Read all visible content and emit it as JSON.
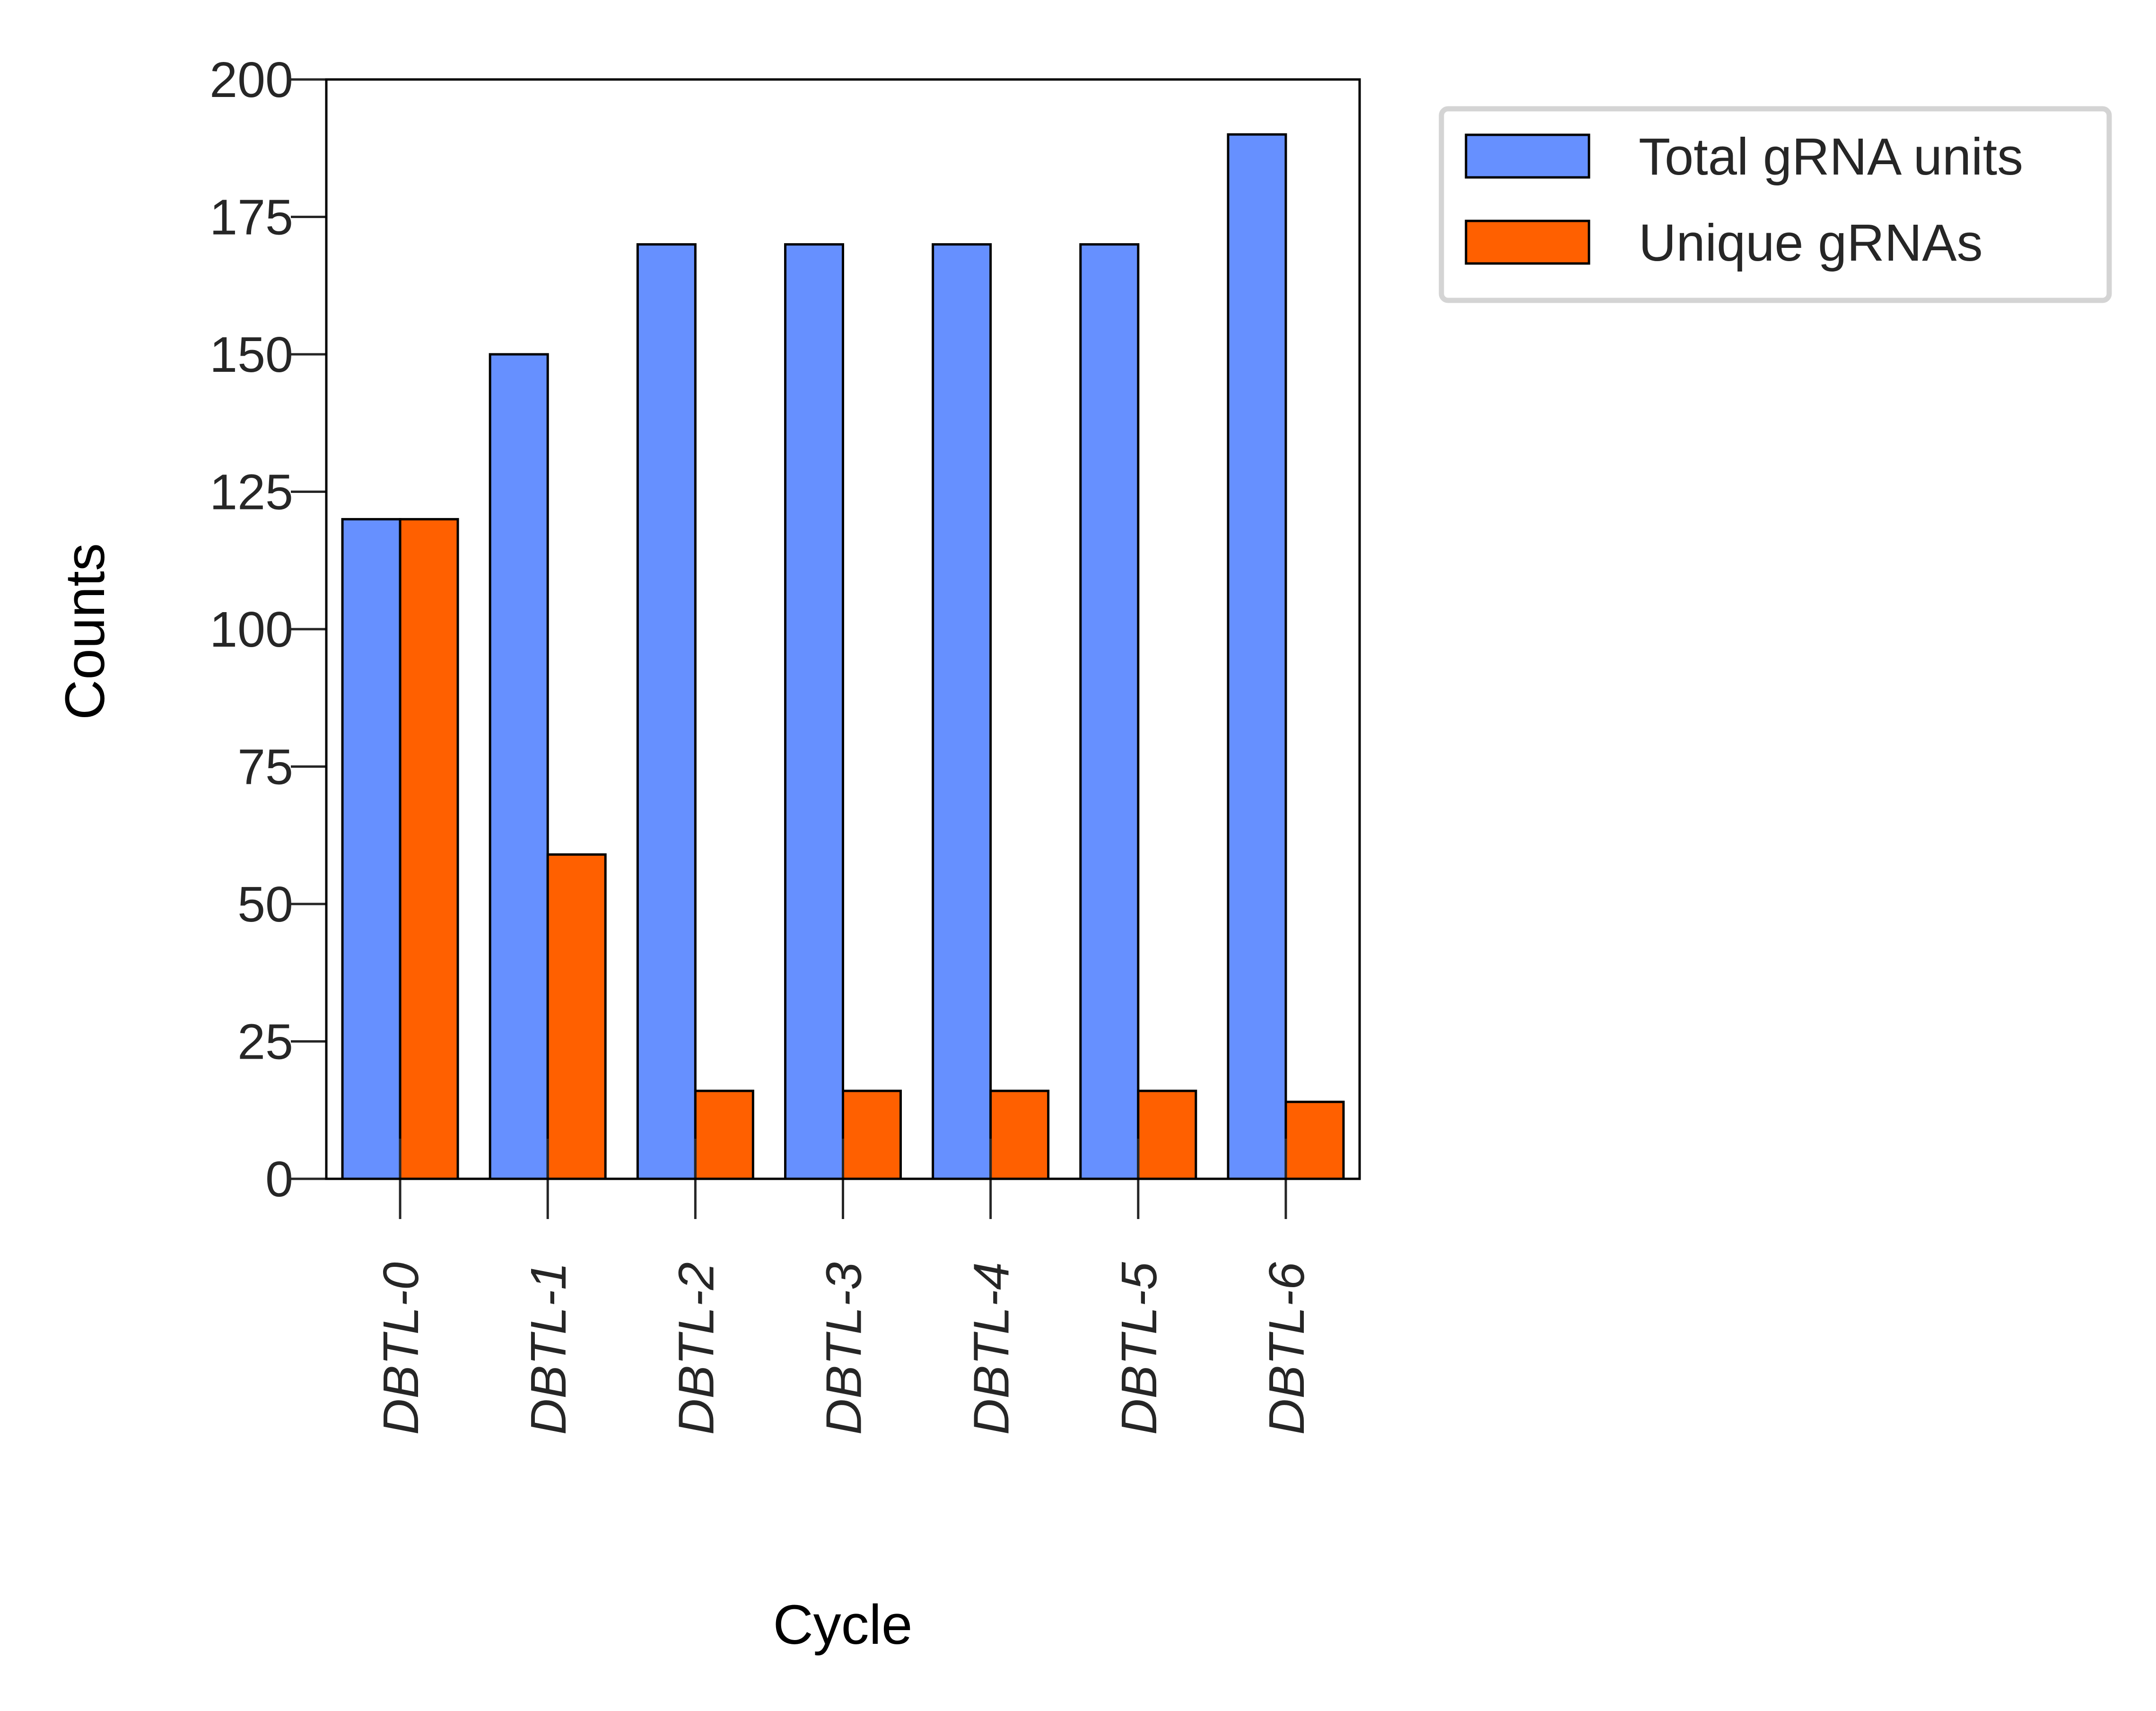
{
  "chart_data": {
    "type": "bar",
    "xlabel": "Cycle",
    "ylabel": "Counts",
    "ylim": [
      0,
      200
    ],
    "yticks": [
      0,
      25,
      50,
      75,
      100,
      125,
      150,
      175,
      200
    ],
    "categories": [
      "DBTL-0",
      "DBTL-1",
      "DBTL-2",
      "DBTL-3",
      "DBTL-4",
      "DBTL-5",
      "DBTL-6"
    ],
    "series": [
      {
        "name": "Total gRNA units",
        "color": "#6690ff",
        "values": [
          120,
          150,
          170,
          170,
          170,
          170,
          190
        ]
      },
      {
        "name": "Unique gRNAs",
        "color": "#ff6000",
        "values": [
          120,
          59,
          16,
          16,
          16,
          16,
          14
        ]
      }
    ],
    "grid": false,
    "legend_position": "outside-top-right"
  }
}
